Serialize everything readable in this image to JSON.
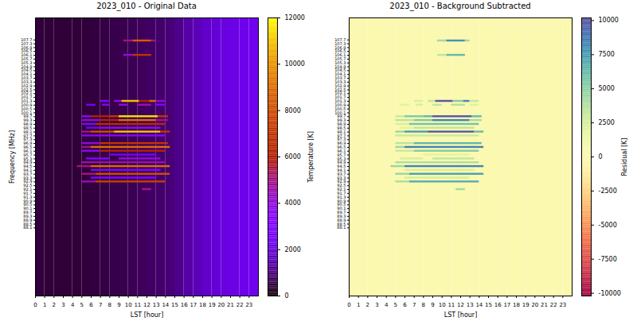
{
  "chart_data": [
    {
      "type": "heatmap",
      "title": "2023_010 - Original Data",
      "x_label": "LST [hour]",
      "y_label": "Frequency [MHz]",
      "xlim": [
        0,
        24
      ],
      "xticks": [
        0,
        1,
        2,
        3,
        4,
        5,
        6,
        7,
        8,
        9,
        10,
        11,
        12,
        13,
        14,
        15,
        16,
        17,
        18,
        19,
        20,
        21,
        22,
        23
      ],
      "ylim": [
        81,
        110
      ],
      "yticks": [
        88.1,
        88.5,
        88.9,
        89.3,
        89.7,
        90.1,
        90.5,
        90.9,
        91.3,
        91.7,
        92.1,
        92.5,
        92.9,
        93.3,
        93.7,
        94.1,
        94.5,
        94.9,
        95.3,
        95.7,
        96.1,
        96.5,
        96.9,
        97.3,
        97.7,
        98.1,
        98.5,
        98.9,
        99.3,
        99.7,
        100.1,
        100.5,
        100.9,
        101.3,
        101.7,
        102.1,
        102.5,
        102.9,
        103.3,
        103.7,
        104.1,
        104.5,
        104.9,
        105.3,
        105.7,
        106.1,
        106.5,
        106.9,
        107.3,
        107.7
      ],
      "color": "gnuplot",
      "colorbar": {
        "label": "Temperature [K]",
        "range": [
          0,
          12000
        ],
        "ticks": [
          0,
          2000,
          4000,
          6000,
          8000,
          10000,
          12000
        ]
      },
      "channel_width": 0.2,
      "background": {
        "bins": [
          0,
          1,
          2,
          3,
          4,
          5,
          6,
          7,
          8,
          9,
          10,
          11,
          12,
          13,
          14,
          15,
          16,
          17,
          18,
          19,
          20,
          21,
          22,
          23,
          24
        ],
        "values": [
          450,
          430,
          420,
          420,
          430,
          450,
          480,
          520,
          560,
          600,
          650,
          700,
          760,
          830,
          920,
          1100,
          1350,
          1550,
          1750,
          1900,
          2050,
          2150,
          2250,
          2300
        ]
      },
      "rfi": [
        {
          "freq": 107.6,
          "segments": [
            [
              9.5,
              10.5,
              5000
            ],
            [
              10.5,
              12.5,
              8500
            ],
            [
              12.5,
              13,
              5000
            ]
          ]
        },
        {
          "freq": 106.1,
          "segments": [
            [
              9.5,
              10.5,
              4000
            ],
            [
              10.5,
              12.5,
              7000
            ]
          ]
        },
        {
          "freq": 101.3,
          "segments": [
            [
              7,
              8,
              3000
            ],
            [
              8.5,
              9.3,
              4000
            ],
            [
              9.3,
              11.2,
              11000
            ],
            [
              11.2,
              12.3,
              6000
            ],
            [
              12.3,
              13,
              9000
            ],
            [
              13,
              14,
              4000
            ]
          ]
        },
        {
          "freq": 100.9,
          "segments": [
            [
              5.5,
              6.5,
              2500
            ],
            [
              7.2,
              8,
              3000
            ],
            [
              9,
              10,
              4000
            ],
            [
              11,
              12.5,
              4500
            ],
            [
              13,
              14,
              3000
            ]
          ]
        },
        {
          "freq": 99.7,
          "segments": [
            [
              5,
              6,
              3500
            ],
            [
              6,
              8,
              6000
            ],
            [
              8,
              9,
              7000
            ],
            [
              9,
              13.2,
              11500
            ],
            [
              13.2,
              14.3,
              7000
            ]
          ]
        },
        {
          "freq": 99.3,
          "segments": [
            [
              5,
              7,
              4000
            ],
            [
              7,
              9,
              6000
            ],
            [
              9,
              13,
              9000
            ],
            [
              13,
              14.3,
              5000
            ]
          ]
        },
        {
          "freq": 98.9,
          "segments": [
            [
              5,
              6.5,
              3000
            ],
            [
              6.5,
              14,
              6500
            ]
          ]
        },
        {
          "freq": 98.5,
          "segments": [
            [
              5.5,
              7,
              2500
            ],
            [
              7,
              13.5,
              4000
            ]
          ]
        },
        {
          "freq": 98.1,
          "segments": [
            [
              5,
              6,
              5000
            ],
            [
              6,
              8.5,
              8000
            ],
            [
              8.5,
              13.5,
              11000
            ],
            [
              13.5,
              14.5,
              7000
            ]
          ]
        },
        {
          "freq": 97.7,
          "segments": [
            [
              5,
              14,
              3500
            ]
          ]
        },
        {
          "freq": 96.9,
          "segments": [
            [
              5,
              7,
              4000
            ],
            [
              7,
              14.3,
              7000
            ]
          ]
        },
        {
          "freq": 96.5,
          "segments": [
            [
              5,
              6,
              5000
            ],
            [
              6,
              14.5,
              9000
            ]
          ]
        },
        {
          "freq": 96.1,
          "segments": [
            [
              5,
              7,
              3500
            ],
            [
              7,
              14,
              6000
            ]
          ]
        },
        {
          "freq": 95.7,
          "segments": [
            [
              8,
              13,
              2500
            ]
          ]
        },
        {
          "freq": 95.3,
          "segments": [
            [
              5.5,
              8,
              3000
            ],
            [
              9,
              13.5,
              4000
            ]
          ]
        },
        {
          "freq": 94.9,
          "segments": [
            [
              5,
              14,
              4500
            ]
          ]
        },
        {
          "freq": 94.5,
          "segments": [
            [
              4.5,
              6,
              5000
            ],
            [
              6,
              14.5,
              9000
            ]
          ]
        },
        {
          "freq": 94.1,
          "segments": [
            [
              6,
              13.5,
              3000
            ]
          ]
        },
        {
          "freq": 93.7,
          "segments": [
            [
              5,
              6.5,
              5000
            ],
            [
              6.5,
              14.5,
              8000
            ]
          ]
        },
        {
          "freq": 93.3,
          "segments": [
            [
              6,
              13,
              3000
            ]
          ]
        },
        {
          "freq": 92.9,
          "segments": [
            [
              5,
              6.5,
              4500
            ],
            [
              6.5,
              14,
              7500
            ]
          ]
        },
        {
          "freq": 92.1,
          "segments": [
            [
              11.5,
              12.5,
              5000
            ]
          ]
        }
      ]
    },
    {
      "type": "heatmap",
      "title": "2023_010 - Background Subtracted",
      "x_label": "LST [hour]",
      "xlim": [
        0,
        24
      ],
      "xticks": [
        0,
        1,
        2,
        3,
        4,
        5,
        6,
        7,
        8,
        9,
        10,
        11,
        12,
        13,
        14,
        15,
        16,
        17,
        18,
        19,
        20,
        21,
        22,
        23
      ],
      "ylim": [
        81,
        110
      ],
      "yticks": [
        88.1,
        88.5,
        88.9,
        89.3,
        89.7,
        90.1,
        90.5,
        90.9,
        91.3,
        91.7,
        92.1,
        92.5,
        92.9,
        93.3,
        93.7,
        94.1,
        94.5,
        94.9,
        95.3,
        95.7,
        96.1,
        96.5,
        96.9,
        97.3,
        97.7,
        98.1,
        98.5,
        98.9,
        99.3,
        99.7,
        100.1,
        100.5,
        100.9,
        101.3,
        101.7,
        102.1,
        102.5,
        102.9,
        103.3,
        103.7,
        104.1,
        104.5,
        104.9,
        105.3,
        105.7,
        106.1,
        106.5,
        106.9,
        107.3,
        107.7
      ],
      "color": "Spectral",
      "colorbar": {
        "label": "Residual [K]",
        "range": [
          -10200,
          10200
        ],
        "ticks": [
          -10000,
          -7500,
          -5000,
          -2500,
          0,
          2500,
          5000,
          7500,
          10000
        ]
      },
      "channel_width": 0.2,
      "background": {
        "bins": [
          0,
          1,
          2,
          3,
          4,
          5,
          6,
          7,
          8,
          9,
          10,
          11,
          12,
          13,
          14,
          15,
          16,
          17,
          18,
          19,
          20,
          21,
          22,
          23,
          24
        ],
        "values": [
          0,
          0,
          0,
          0,
          0,
          0,
          0,
          0,
          0,
          0,
          0,
          0,
          0,
          0,
          0,
          0,
          0,
          0,
          0,
          0,
          0,
          0,
          0,
          0
        ]
      },
      "rfi": [
        {
          "freq": 107.6,
          "segments": [
            [
              9.5,
              10.5,
              4300
            ],
            [
              10.5,
              12.5,
              7800
            ],
            [
              12.5,
              13,
              4300
            ]
          ]
        },
        {
          "freq": 106.1,
          "segments": [
            [
              9.5,
              10.5,
              3300
            ],
            [
              10.5,
              12.5,
              6300
            ]
          ]
        },
        {
          "freq": 101.3,
          "segments": [
            [
              7,
              8,
              2400
            ],
            [
              8.5,
              9.3,
              3400
            ],
            [
              9.3,
              11.2,
              10000
            ],
            [
              11.2,
              12.3,
              5300
            ],
            [
              12.3,
              13,
              8200
            ],
            [
              13,
              14,
              3200
            ]
          ]
        },
        {
          "freq": 100.9,
          "segments": [
            [
              5.5,
              6.5,
              2000
            ],
            [
              7.2,
              8,
              2400
            ],
            [
              9,
              10,
              3400
            ],
            [
              11,
              12.5,
              3800
            ],
            [
              13,
              14,
              2200
            ]
          ]
        },
        {
          "freq": 99.7,
          "segments": [
            [
              5,
              6,
              3000
            ],
            [
              6,
              8,
              5400
            ],
            [
              8,
              9,
              6400
            ],
            [
              9,
              13.2,
              10000
            ],
            [
              13.2,
              14.3,
              6200
            ]
          ]
        },
        {
          "freq": 99.3,
          "segments": [
            [
              5,
              7,
              3500
            ],
            [
              7,
              9,
              5400
            ],
            [
              9,
              13,
              8300
            ],
            [
              13,
              14.3,
              4200
            ]
          ]
        },
        {
          "freq": 98.9,
          "segments": [
            [
              5,
              6.5,
              2500
            ],
            [
              6.5,
              14,
              5800
            ]
          ]
        },
        {
          "freq": 98.5,
          "segments": [
            [
              5.5,
              7,
              2000
            ],
            [
              7,
              13.5,
              3400
            ]
          ]
        },
        {
          "freq": 98.1,
          "segments": [
            [
              5,
              6,
              4500
            ],
            [
              6,
              8.5,
              7400
            ],
            [
              8.5,
              13.5,
              10000
            ],
            [
              13.5,
              14.5,
              6200
            ]
          ]
        },
        {
          "freq": 97.7,
          "segments": [
            [
              5,
              14,
              2900
            ]
          ]
        },
        {
          "freq": 96.9,
          "segments": [
            [
              5,
              7,
              3500
            ],
            [
              7,
              14.3,
              6300
            ]
          ]
        },
        {
          "freq": 96.5,
          "segments": [
            [
              5,
              6,
              4500
            ],
            [
              6,
              14.5,
              8300
            ]
          ]
        },
        {
          "freq": 96.1,
          "segments": [
            [
              5,
              7,
              3000
            ],
            [
              7,
              14,
              5300
            ]
          ]
        },
        {
          "freq": 95.7,
          "segments": [
            [
              8,
              13,
              1900
            ]
          ]
        },
        {
          "freq": 95.3,
          "segments": [
            [
              5.5,
              8,
              2500
            ],
            [
              9,
              13.5,
              3300
            ]
          ]
        },
        {
          "freq": 94.9,
          "segments": [
            [
              5,
              14,
              3900
            ]
          ]
        },
        {
          "freq": 94.5,
          "segments": [
            [
              4.5,
              6,
              4500
            ],
            [
              6,
              14.5,
              8300
            ]
          ]
        },
        {
          "freq": 94.1,
          "segments": [
            [
              6,
              13.5,
              2400
            ]
          ]
        },
        {
          "freq": 93.7,
          "segments": [
            [
              5,
              6.5,
              4500
            ],
            [
              6.5,
              14.5,
              7300
            ]
          ]
        },
        {
          "freq": 93.3,
          "segments": [
            [
              6,
              13,
              2400
            ]
          ]
        },
        {
          "freq": 92.9,
          "segments": [
            [
              5,
              6.5,
              4000
            ],
            [
              6.5,
              14,
              6800
            ]
          ]
        },
        {
          "freq": 92.1,
          "segments": [
            [
              11.5,
              12.5,
              4300
            ]
          ]
        }
      ]
    }
  ]
}
